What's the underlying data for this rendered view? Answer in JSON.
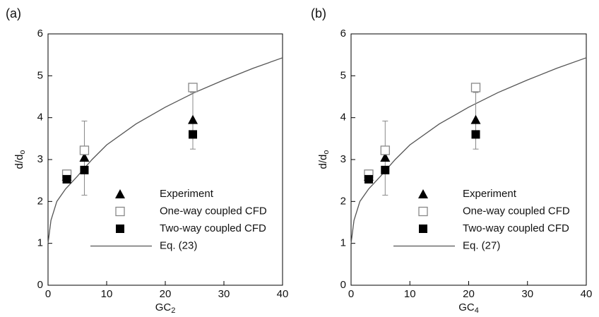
{
  "chart_data": [
    {
      "type": "scatter",
      "panel_label": "(a)",
      "xlabel": "GC",
      "xlabel_subscript": "2",
      "ylabel": "d/d",
      "ylabel_subscript": "o",
      "xlim": [
        0,
        40
      ],
      "xticks": [
        0,
        10,
        20,
        30,
        40
      ],
      "ylim": [
        0,
        6
      ],
      "yticks": [
        0,
        1,
        2,
        3,
        4,
        5,
        6
      ],
      "series": [
        {
          "name": "Experiment",
          "marker": "triangle",
          "color": "#000000",
          "x": [
            3.2,
            6.2,
            24.7
          ],
          "values": [
            2.6,
            3.05,
            3.95
          ],
          "yerr_lower": [
            2.5,
            2.15,
            3.25
          ],
          "yerr_upper": [
            2.75,
            3.92,
            4.6
          ]
        },
        {
          "name": "One-way coupled CFD",
          "marker": "open-square",
          "color": "#888888",
          "x": [
            3.2,
            6.2,
            24.7
          ],
          "values": [
            2.65,
            3.22,
            4.72
          ]
        },
        {
          "name": "Two-way coupled CFD",
          "marker": "square",
          "color": "#000000",
          "x": [
            3.2,
            6.2,
            24.7
          ],
          "values": [
            2.53,
            2.75,
            3.6
          ]
        }
      ],
      "curve": {
        "name": "Eq. (23)",
        "color": "#555555",
        "x": [
          0,
          0.5,
          1.5,
          3,
          5,
          7.5,
          10,
          15,
          20,
          25,
          30,
          35,
          40
        ],
        "values": [
          1,
          1.55,
          2.0,
          2.3,
          2.6,
          3.0,
          3.35,
          3.85,
          4.25,
          4.6,
          4.9,
          5.18,
          5.43
        ]
      }
    },
    {
      "type": "scatter",
      "panel_label": "(b)",
      "xlabel": "GC",
      "xlabel_subscript": "4",
      "ylabel": "d/d",
      "ylabel_subscript": "o",
      "xlim": [
        0,
        40
      ],
      "xticks": [
        0,
        10,
        20,
        30,
        40
      ],
      "ylim": [
        0,
        6
      ],
      "yticks": [
        0,
        1,
        2,
        3,
        4,
        5,
        6
      ],
      "series": [
        {
          "name": "Experiment",
          "marker": "triangle",
          "color": "#000000",
          "x": [
            3.0,
            5.8,
            21.2
          ],
          "values": [
            2.6,
            3.05,
            3.95
          ],
          "yerr_lower": [
            2.5,
            2.15,
            3.25
          ],
          "yerr_upper": [
            2.75,
            3.92,
            4.6
          ]
        },
        {
          "name": "One-way coupled CFD",
          "marker": "open-square",
          "color": "#888888",
          "x": [
            3.0,
            5.8,
            21.2
          ],
          "values": [
            2.65,
            3.22,
            4.72
          ]
        },
        {
          "name": "Two-way coupled CFD",
          "marker": "square",
          "color": "#000000",
          "x": [
            3.0,
            5.8,
            21.2
          ],
          "values": [
            2.53,
            2.75,
            3.6
          ]
        }
      ],
      "curve": {
        "name": "Eq. (27)",
        "color": "#555555",
        "x": [
          0,
          0.5,
          1.5,
          3,
          5,
          7.5,
          10,
          15,
          20,
          25,
          30,
          35,
          40
        ],
        "values": [
          1,
          1.55,
          2.0,
          2.3,
          2.6,
          3.0,
          3.35,
          3.85,
          4.25,
          4.6,
          4.9,
          5.18,
          5.43
        ]
      }
    }
  ]
}
